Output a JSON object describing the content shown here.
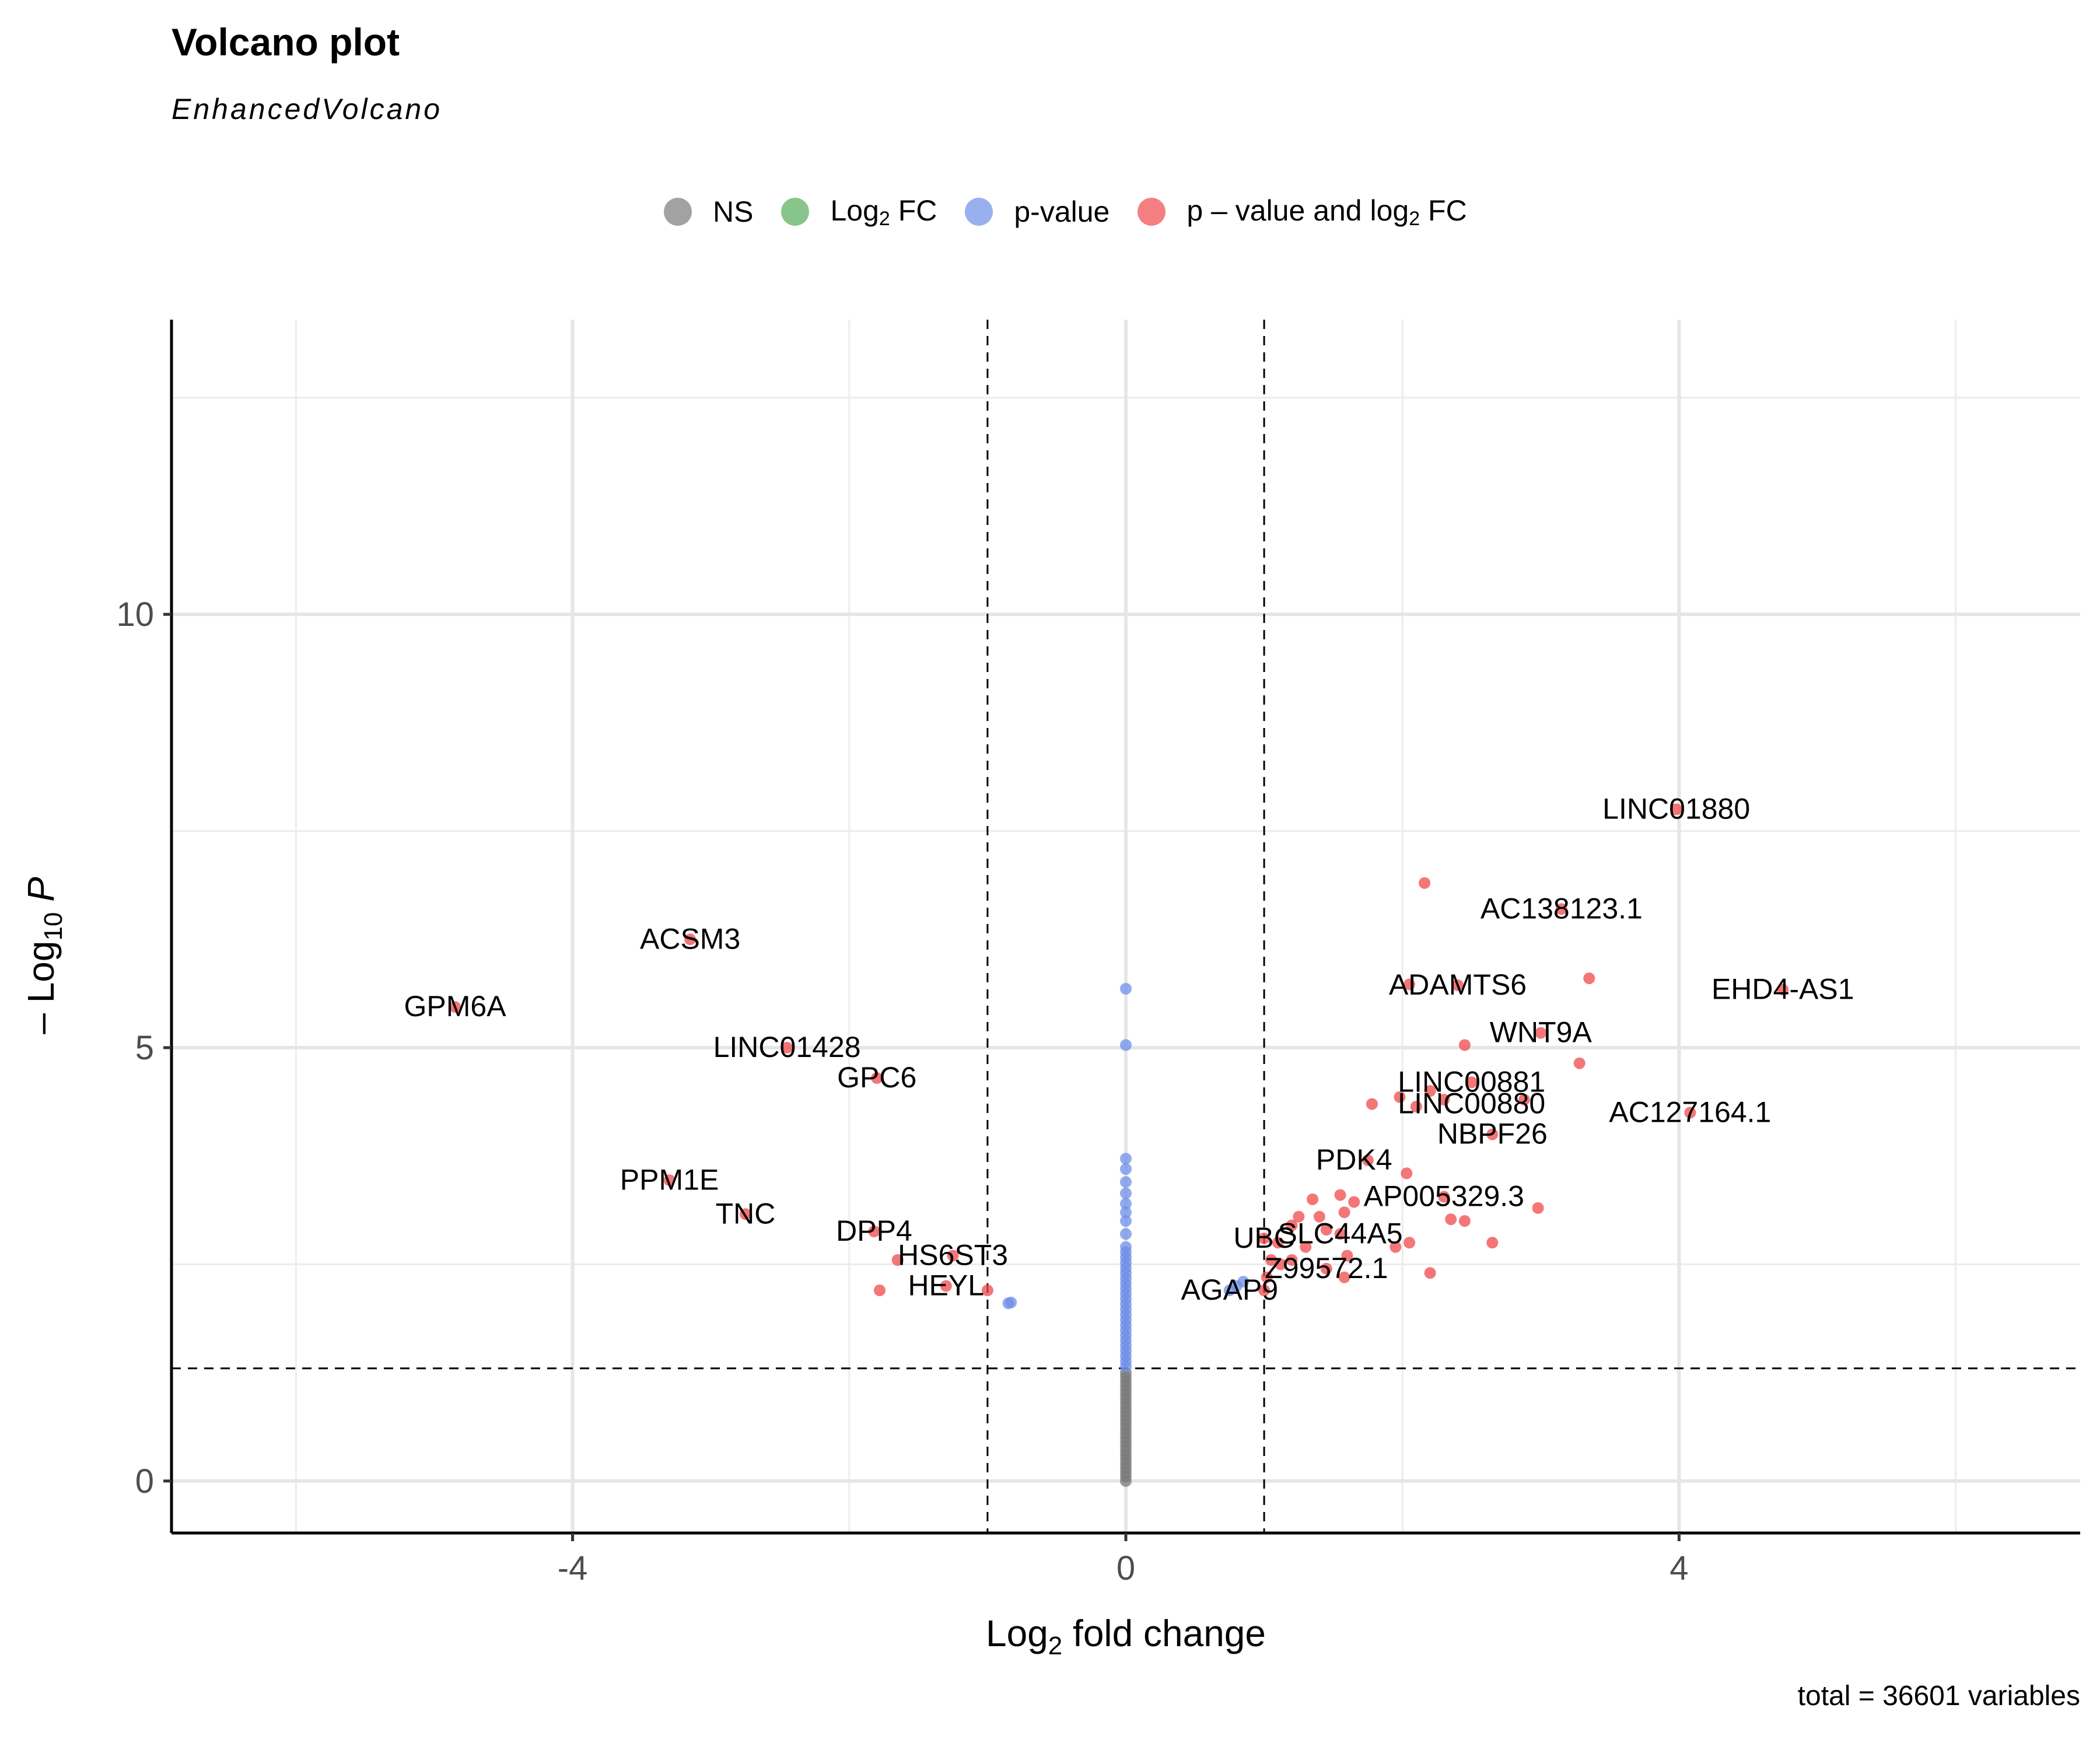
{
  "chart_data": {
    "type": "scatter",
    "title": "Volcano plot",
    "subtitle": "EnhancedVolcano",
    "caption": "total = 36601 variables",
    "xlabel": "Log2 fold change",
    "ylabel": "-Log10 P",
    "xlim": [
      -6.9,
      6.9
    ],
    "ylim": [
      -0.6,
      13.4
    ],
    "xticks": [
      -4,
      0,
      4
    ],
    "yticks": [
      0,
      5,
      10
    ],
    "grid": true,
    "legend_position": "top",
    "cutoffs": {
      "log2fc": [
        -1,
        1
      ],
      "neglog10p": 1.3
    },
    "legend": [
      {
        "key": "NS",
        "label": "NS",
        "color": "#7a7a7a"
      },
      {
        "key": "FC",
        "label": "Log2 FC",
        "color": "#55ad58"
      },
      {
        "key": "P",
        "label": "p-value",
        "color": "#6d8fe8"
      },
      {
        "key": "PFC",
        "label": "p – value and log2 FC",
        "color": "#f0484a"
      }
    ],
    "series": [
      {
        "key": "NS",
        "points": [
          [
            0,
            0
          ],
          [
            0,
            0.05
          ],
          [
            0,
            0.1
          ],
          [
            0,
            0.15
          ],
          [
            0,
            0.2
          ],
          [
            0,
            0.25
          ],
          [
            0,
            0.3
          ],
          [
            0,
            0.35
          ],
          [
            0,
            0.4
          ],
          [
            0,
            0.45
          ],
          [
            0,
            0.5
          ],
          [
            0,
            0.55
          ],
          [
            0,
            0.6
          ],
          [
            0,
            0.65
          ],
          [
            0,
            0.7
          ],
          [
            0,
            0.75
          ],
          [
            0,
            0.8
          ],
          [
            0,
            0.85
          ],
          [
            0,
            0.9
          ],
          [
            0,
            0.95
          ],
          [
            0,
            1.0
          ],
          [
            0,
            1.05
          ],
          [
            0,
            1.1
          ],
          [
            0,
            1.15
          ],
          [
            0,
            1.2
          ],
          [
            0,
            1.25
          ]
        ]
      },
      {
        "key": "P",
        "points": [
          [
            0,
            1.32
          ],
          [
            0,
            1.38
          ],
          [
            0,
            1.44
          ],
          [
            0,
            1.5
          ],
          [
            0,
            1.56
          ],
          [
            0,
            1.62
          ],
          [
            0,
            1.68
          ],
          [
            0,
            1.74
          ],
          [
            0,
            1.8
          ],
          [
            0,
            1.86
          ],
          [
            0,
            1.92
          ],
          [
            0,
            1.98
          ],
          [
            0,
            2.04
          ],
          [
            0,
            2.1
          ],
          [
            0,
            2.16
          ],
          [
            0,
            2.22
          ],
          [
            0,
            2.28
          ],
          [
            0,
            2.34
          ],
          [
            0,
            2.4
          ],
          [
            0,
            2.46
          ],
          [
            0,
            2.52
          ],
          [
            0,
            2.58
          ],
          [
            0,
            2.64
          ],
          [
            0,
            2.7
          ],
          [
            0,
            2.85
          ],
          [
            0,
            3.0
          ],
          [
            0,
            3.1
          ],
          [
            0,
            3.2
          ],
          [
            0,
            3.32
          ],
          [
            0,
            3.45
          ],
          [
            0,
            3.6
          ],
          [
            0,
            3.72
          ],
          [
            0,
            5.03
          ],
          [
            0,
            5.68
          ],
          [
            -0.85,
            2.05
          ],
          [
            -0.83,
            2.06
          ],
          [
            0.75,
            2.2
          ],
          [
            0.8,
            2.25
          ],
          [
            0.85,
            2.3
          ]
        ]
      },
      {
        "key": "PFC",
        "points": [
          [
            3.98,
            7.75
          ],
          [
            2.16,
            6.9
          ],
          [
            3.15,
            6.6
          ],
          [
            -3.15,
            6.25
          ],
          [
            3.35,
            5.8
          ],
          [
            2.05,
            5.73
          ],
          [
            2.4,
            5.72
          ],
          [
            4.75,
            5.67
          ],
          [
            -4.85,
            5.47
          ],
          [
            3.0,
            5.17
          ],
          [
            2.45,
            5.03
          ],
          [
            -2.45,
            5.0
          ],
          [
            3.28,
            4.82
          ],
          [
            2.5,
            4.6
          ],
          [
            -1.8,
            4.65
          ],
          [
            2.2,
            4.5
          ],
          [
            2.3,
            4.4
          ],
          [
            1.98,
            4.43
          ],
          [
            2.88,
            4.4
          ],
          [
            1.78,
            4.35
          ],
          [
            2.1,
            4.32
          ],
          [
            4.08,
            4.25
          ],
          [
            2.65,
            4.0
          ],
          [
            1.75,
            3.7
          ],
          [
            2.03,
            3.55
          ],
          [
            -3.3,
            3.47
          ],
          [
            1.35,
            3.25
          ],
          [
            1.55,
            3.3
          ],
          [
            1.65,
            3.22
          ],
          [
            2.98,
            3.15
          ],
          [
            1.58,
            3.1
          ],
          [
            -2.75,
            3.08
          ],
          [
            2.3,
            3.28
          ],
          [
            1.4,
            3.05
          ],
          [
            1.25,
            3.05
          ],
          [
            1.2,
            2.95
          ],
          [
            1.45,
            2.9
          ],
          [
            2.45,
            3.0
          ],
          [
            2.35,
            3.02
          ],
          [
            -1.82,
            2.88
          ],
          [
            1.55,
            2.85
          ],
          [
            1.0,
            2.8
          ],
          [
            1.1,
            2.75
          ],
          [
            1.3,
            2.7
          ],
          [
            1.6,
            2.6
          ],
          [
            1.95,
            2.7
          ],
          [
            2.05,
            2.75
          ],
          [
            2.65,
            2.75
          ],
          [
            1.05,
            2.55
          ],
          [
            1.12,
            2.5
          ],
          [
            1.2,
            2.55
          ],
          [
            1.45,
            2.45
          ],
          [
            1.58,
            2.35
          ],
          [
            1.02,
            2.35
          ],
          [
            -1.65,
            2.55
          ],
          [
            -1.25,
            2.6
          ],
          [
            2.2,
            2.4
          ],
          [
            1.0,
            2.2
          ],
          [
            -1.3,
            2.25
          ],
          [
            -1.0,
            2.2
          ],
          [
            -1.78,
            2.2
          ]
        ]
      }
    ],
    "labels": [
      {
        "text": "LINC01880",
        "x": 3.98,
        "y": 7.75
      },
      {
        "text": "AC138123.1",
        "x": 3.15,
        "y": 6.6
      },
      {
        "text": "ACSM3",
        "x": -3.15,
        "y": 6.25
      },
      {
        "text": "ADAMTS6",
        "x": 2.4,
        "y": 5.72
      },
      {
        "text": "EHD4-AS1",
        "x": 4.75,
        "y": 5.67
      },
      {
        "text": "GPM6A",
        "x": -4.85,
        "y": 5.47
      },
      {
        "text": "WNT9A",
        "x": 3.0,
        "y": 5.17
      },
      {
        "text": "LINC01428",
        "x": -2.45,
        "y": 5.0
      },
      {
        "text": "LINC00881",
        "x": 2.5,
        "y": 4.6
      },
      {
        "text": "GPC6",
        "x": -1.8,
        "y": 4.65
      },
      {
        "text": "LINC00880",
        "x": 2.5,
        "y": 4.35
      },
      {
        "text": "AC127164.1",
        "x": 4.08,
        "y": 4.25
      },
      {
        "text": "NBPF26",
        "x": 2.65,
        "y": 4.0
      },
      {
        "text": "PDK4",
        "x": 1.65,
        "y": 3.7
      },
      {
        "text": "PPM1E",
        "x": -3.3,
        "y": 3.47
      },
      {
        "text": "AP005329.3",
        "x": 2.3,
        "y": 3.28
      },
      {
        "text": "TNC",
        "x": -2.75,
        "y": 3.08
      },
      {
        "text": "DPP4",
        "x": -1.82,
        "y": 2.88
      },
      {
        "text": "SLC44A5",
        "x": 1.55,
        "y": 2.85
      },
      {
        "text": "UBC",
        "x": 1.0,
        "y": 2.8
      },
      {
        "text": "HS6ST3",
        "x": -1.25,
        "y": 2.6
      },
      {
        "text": "Z99572.1",
        "x": 1.45,
        "y": 2.45
      },
      {
        "text": "HEYL",
        "x": -1.3,
        "y": 2.25
      },
      {
        "text": "AGAP9",
        "x": 0.75,
        "y": 2.2
      }
    ]
  }
}
